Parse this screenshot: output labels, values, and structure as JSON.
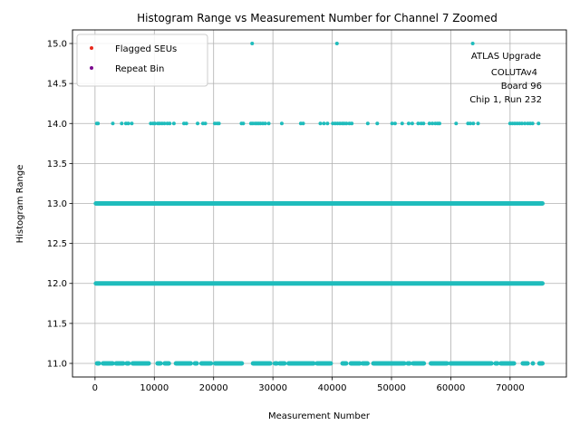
{
  "chart_data": {
    "type": "scatter",
    "title": "Histogram Range vs Measurement Number for Channel 7 Zoomed",
    "xlabel": "Measurement Number",
    "ylabel": "Histogram Range",
    "xlim": [
      -3800,
      79500
    ],
    "ylim": [
      10.83,
      15.17
    ],
    "grid": true,
    "x_ticks": [
      0,
      10000,
      20000,
      30000,
      40000,
      50000,
      60000,
      70000
    ],
    "x_tick_labels": [
      "0",
      "10000",
      "20000",
      "30000",
      "40000",
      "50000",
      "60000",
      "70000"
    ],
    "y_ticks": [
      11.0,
      11.5,
      12.0,
      12.5,
      13.0,
      13.5,
      14.0,
      14.5,
      15.0
    ],
    "y_tick_labels": [
      "11.0",
      "11.5",
      "12.0",
      "12.5",
      "13.0",
      "13.5",
      "14.0",
      "14.5",
      "15.0"
    ],
    "legend": {
      "position": "top-left",
      "entries": [
        {
          "label": "Flagged SEUs",
          "color": "#e8291c"
        },
        {
          "label": "Repeat Bin",
          "color": "#7b0a8e"
        }
      ]
    },
    "annotation": [
      "ATLAS Upgrade",
      "COLUTAv4",
      "Board 96",
      "Chip 1, Run 232"
    ],
    "annotation_position": "top-right",
    "series": [
      {
        "name": "Histogram Range",
        "color": "#1fbcbc",
        "continuous_ranges": [
          {
            "y": 12,
            "x_start": 0,
            "x_end": 75600
          },
          {
            "y": 13,
            "x_start": 0,
            "x_end": 75600
          }
        ],
        "segments_y11": [
          [
            200,
            800
          ],
          [
            1200,
            3100
          ],
          [
            3400,
            4900
          ],
          [
            5200,
            5800
          ],
          [
            6200,
            9200
          ],
          [
            10400,
            11200
          ],
          [
            11600,
            12600
          ],
          [
            13500,
            16300
          ],
          [
            16700,
            17300
          ],
          [
            17800,
            19700
          ],
          [
            20100,
            24900
          ],
          [
            26500,
            29700
          ],
          [
            30200,
            30800
          ],
          [
            31000,
            32100
          ],
          [
            32500,
            37000
          ],
          [
            37300,
            39900
          ],
          [
            41600,
            42500
          ],
          [
            43000,
            44800
          ],
          [
            45000,
            46100
          ],
          [
            46800,
            52300
          ],
          [
            52600,
            53200
          ],
          [
            53500,
            55600
          ],
          [
            56500,
            59500
          ],
          [
            59800,
            67000
          ],
          [
            67400,
            68000
          ],
          [
            68300,
            70800
          ],
          [
            72000,
            73100
          ],
          [
            73700,
            74000
          ],
          [
            74800,
            75600
          ]
        ],
        "points_y14": [
          300,
          500,
          3000,
          4500,
          5200,
          5600,
          6200,
          9400,
          9800,
          10100,
          10600,
          10900,
          11300,
          11700,
          12200,
          12600,
          13300,
          15000,
          15400,
          17300,
          18200,
          18600,
          20200,
          20600,
          20900,
          24700,
          25000,
          26300,
          26600,
          27000,
          27300,
          27600,
          27900,
          28300,
          28700,
          29300,
          31500,
          34700,
          35100,
          38000,
          38600,
          39200,
          40100,
          40500,
          40900,
          41300,
          41700,
          42000,
          42400,
          42900,
          43300,
          46000,
          47600,
          50100,
          50600,
          51800,
          52900,
          53500,
          54500,
          55000,
          55400,
          56400,
          56900,
          57400,
          57800,
          58100,
          60900,
          62900,
          63300,
          63800,
          64600,
          70000,
          70400,
          70800,
          71200,
          71600,
          72000,
          72500,
          73000,
          73400,
          73800,
          74800
        ],
        "points_y15": [
          26500,
          40800,
          63700
        ]
      }
    ]
  }
}
